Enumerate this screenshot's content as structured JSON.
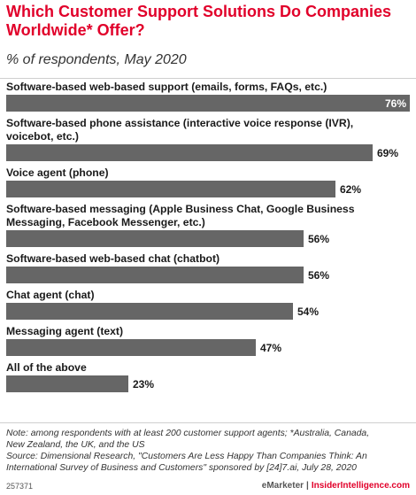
{
  "header": {
    "title": "Which Customer Support Solutions Do Companies Worldwide* Offer?",
    "subtitle": "% of respondents, May 2020"
  },
  "chart_data": {
    "type": "bar",
    "orientation": "horizontal",
    "title": "Which Customer Support Solutions Do Companies Worldwide* Offer?",
    "subtitle": "% of respondents, May 2020",
    "categories": [
      [
        "Software-based web-based support (emails, forms, FAQs, etc.)"
      ],
      [
        "Software-based phone assistance (interactive voice response (IVR),",
        "voicebot, etc.)"
      ],
      [
        "Voice agent (phone)"
      ],
      [
        "Software-based messaging (Apple Business Chat, Google Business",
        "Messaging, Facebook Messenger, etc.)"
      ],
      [
        "Software-based web-based chat (chatbot)"
      ],
      [
        "Chat agent (chat)"
      ],
      [
        "Messaging agent (text)"
      ],
      [
        "All of the above"
      ]
    ],
    "values": [
      76,
      69,
      62,
      56,
      56,
      54,
      47,
      23
    ],
    "value_labels": [
      "76%",
      "69%",
      "62%",
      "56%",
      "56%",
      "54%",
      "47%",
      "23%"
    ],
    "xlim": [
      0,
      76
    ],
    "grid": false,
    "bar_color": "#666666"
  },
  "footer": {
    "note_lines": [
      "Note: among respondents with at least 200 customer support agents; *Australia, Canada,",
      "New Zealand, the UK, and the US",
      "Source: Dimensional Research, \"Customers Are Less Happy Than Companies Think: An",
      "International Survey of Business and Customers\" sponsored by [24]7.ai, July 28, 2020"
    ],
    "chart_id": "257371",
    "brand_emarketer": "eMarketer",
    "brand_separator": "|",
    "brand_insider": "InsiderIntelligence.com"
  }
}
